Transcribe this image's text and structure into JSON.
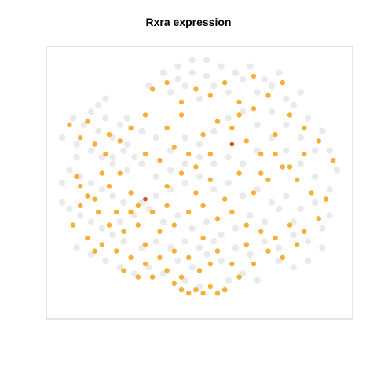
{
  "chart_data": {
    "type": "scatter",
    "title": "Rxra expression",
    "xlabel": "",
    "ylabel": "",
    "axes_visible": false,
    "xlim": [
      -40,
      40
    ],
    "ylim": [
      -40,
      40
    ],
    "grid": false,
    "legend": "none",
    "colors": {
      "background_cells": "#d9d9d9",
      "expressing_cells": "#f5a623",
      "high_expression": "#d2521a",
      "plot_border": "#cccccc"
    },
    "series": [
      {
        "role": "non-expressing",
        "points": [
          [
            -35,
            20
          ],
          [
            -32,
            18
          ],
          [
            -30,
            22
          ],
          [
            -28,
            16
          ],
          [
            -26,
            20
          ],
          [
            -24,
            14
          ],
          [
            -22,
            18
          ],
          [
            -20,
            12
          ],
          [
            -34,
            12
          ],
          [
            -30,
            10
          ],
          [
            -27,
            8
          ],
          [
            -24,
            6
          ],
          [
            -21,
            10
          ],
          [
            -18,
            8
          ],
          [
            -36,
            4
          ],
          [
            -33,
            2
          ],
          [
            -30,
            0
          ],
          [
            -27,
            -2
          ],
          [
            -24,
            -4
          ],
          [
            -21,
            -6
          ],
          [
            -36,
            -8
          ],
          [
            -33,
            -10
          ],
          [
            -30,
            -12
          ],
          [
            -27,
            -14
          ],
          [
            -24,
            -16
          ],
          [
            -21,
            -18
          ],
          [
            -34,
            -20
          ],
          [
            -30,
            -22
          ],
          [
            -26,
            -24
          ],
          [
            -22,
            -26
          ],
          [
            -18,
            -28
          ],
          [
            -14,
            -26
          ],
          [
            -10,
            -28
          ],
          [
            -6,
            -24
          ],
          [
            -2,
            -26
          ],
          [
            2,
            -22
          ],
          [
            6,
            -24
          ],
          [
            10,
            -20
          ],
          [
            14,
            -22
          ],
          [
            18,
            -18
          ],
          [
            22,
            -20
          ],
          [
            26,
            -16
          ],
          [
            30,
            -18
          ],
          [
            34,
            -14
          ],
          [
            36,
            -10
          ],
          [
            32,
            -6
          ],
          [
            28,
            -8
          ],
          [
            24,
            -4
          ],
          [
            20,
            -6
          ],
          [
            16,
            -2
          ],
          [
            12,
            -4
          ],
          [
            8,
            0
          ],
          [
            4,
            -2
          ],
          [
            0,
            2
          ],
          [
            -4,
            0
          ],
          [
            -8,
            4
          ],
          [
            -12,
            2
          ],
          [
            -16,
            6
          ],
          [
            -20,
            4
          ],
          [
            -24,
            8
          ],
          [
            -8,
            28
          ],
          [
            -4,
            30
          ],
          [
            0,
            26
          ],
          [
            4,
            30
          ],
          [
            8,
            28
          ],
          [
            12,
            32
          ],
          [
            16,
            28
          ],
          [
            20,
            30
          ],
          [
            24,
            26
          ],
          [
            28,
            28
          ],
          [
            -14,
            30
          ],
          [
            -10,
            34
          ],
          [
            -6,
            32
          ],
          [
            -2,
            34
          ],
          [
            2,
            33
          ],
          [
            6,
            36
          ],
          [
            10,
            34
          ],
          [
            14,
            36
          ],
          [
            18,
            32
          ],
          [
            22,
            34
          ],
          [
            26,
            24
          ],
          [
            30,
            20
          ],
          [
            34,
            16
          ],
          [
            36,
            10
          ],
          [
            38,
            4
          ],
          [
            36,
            -2
          ],
          [
            32,
            2
          ],
          [
            28,
            6
          ],
          [
            24,
            10
          ],
          [
            20,
            14
          ],
          [
            16,
            18
          ],
          [
            12,
            22
          ],
          [
            8,
            20
          ],
          [
            4,
            16
          ],
          [
            0,
            12
          ],
          [
            -4,
            14
          ],
          [
            -8,
            10
          ],
          [
            -12,
            14
          ],
          [
            -16,
            16
          ],
          [
            -20,
            20
          ],
          [
            -6,
            36
          ],
          [
            -2,
            38
          ],
          [
            2,
            38
          ],
          [
            -10,
            -12
          ],
          [
            -6,
            -10
          ],
          [
            -2,
            -14
          ],
          [
            2,
            -12
          ],
          [
            6,
            -16
          ],
          [
            10,
            -14
          ],
          [
            14,
            -10
          ],
          [
            18,
            -12
          ],
          [
            22,
            -8
          ],
          [
            26,
            -12
          ],
          [
            -14,
            -8
          ],
          [
            -18,
            -10
          ],
          [
            -22,
            -12
          ],
          [
            -16,
            -20
          ],
          [
            -12,
            -18
          ],
          [
            -8,
            -20
          ],
          [
            -4,
            -18
          ],
          [
            0,
            -20
          ],
          [
            4,
            -18
          ],
          [
            8,
            -30
          ],
          [
            12,
            -28
          ],
          [
            16,
            -30
          ],
          [
            0,
            -32
          ],
          [
            -4,
            -30
          ],
          [
            20,
            22
          ],
          [
            24,
            18
          ],
          [
            28,
            14
          ],
          [
            32,
            10
          ],
          [
            16,
            10
          ],
          [
            12,
            6
          ],
          [
            8,
            8
          ],
          [
            4,
            6
          ],
          [
            0,
            8
          ],
          [
            -4,
            6
          ],
          [
            -8,
            -2
          ],
          [
            -12,
            -4
          ],
          [
            -16,
            -6
          ],
          [
            -28,
            24
          ],
          [
            -26,
            26
          ],
          [
            -34,
            8
          ],
          [
            -38,
            14
          ],
          [
            -38,
            0
          ],
          [
            -38,
            -6
          ],
          [
            34,
            -20
          ],
          [
            30,
            -24
          ],
          [
            26,
            -26
          ],
          [
            22,
            -24
          ]
        ]
      },
      {
        "role": "expressing",
        "points": [
          [
            -36,
            18
          ],
          [
            -33,
            14
          ],
          [
            -29,
            12
          ],
          [
            -26,
            9
          ],
          [
            -22,
            13
          ],
          [
            -34,
            2
          ],
          [
            -31,
            -4
          ],
          [
            -28,
            -9
          ],
          [
            -25,
            -1
          ],
          [
            -22,
            3
          ],
          [
            -19,
            -3
          ],
          [
            -35,
            -13
          ],
          [
            -31,
            -17
          ],
          [
            -27,
            -19
          ],
          [
            -23,
            -21
          ],
          [
            -19,
            -23
          ],
          [
            -15,
            -25
          ],
          [
            -11,
            -23
          ],
          [
            -7,
            -21
          ],
          [
            -3,
            -23
          ],
          [
            1,
            -17
          ],
          [
            5,
            -21
          ],
          [
            9,
            -25
          ],
          [
            13,
            -19
          ],
          [
            17,
            -15
          ],
          [
            21,
            -17
          ],
          [
            25,
            -13
          ],
          [
            29,
            -15
          ],
          [
            33,
            -11
          ],
          [
            31,
            -3
          ],
          [
            27,
            1
          ],
          [
            23,
            5
          ],
          [
            19,
            1
          ],
          [
            15,
            -3
          ],
          [
            11,
            3
          ],
          [
            7,
            -5
          ],
          [
            3,
            1
          ],
          [
            -1,
            -3
          ],
          [
            -5,
            3
          ],
          [
            -9,
            -1
          ],
          [
            -13,
            -9
          ],
          [
            -17,
            -13
          ],
          [
            -21,
            -15
          ],
          [
            -11,
            -15
          ],
          [
            -7,
            -13
          ],
          [
            -3,
            -9
          ],
          [
            1,
            -7
          ],
          [
            5,
            -11
          ],
          [
            9,
            -9
          ],
          [
            13,
            -13
          ],
          [
            -13,
            29
          ],
          [
            -9,
            31
          ],
          [
            -5,
            25
          ],
          [
            -1,
            29
          ],
          [
            3,
            27
          ],
          [
            7,
            31
          ],
          [
            11,
            25
          ],
          [
            15,
            33
          ],
          [
            19,
            27
          ],
          [
            23,
            31
          ],
          [
            -15,
            9
          ],
          [
            -11,
            7
          ],
          [
            -7,
            11
          ],
          [
            -3,
            9
          ],
          [
            1,
            15
          ],
          [
            5,
            19
          ],
          [
            9,
            17
          ],
          [
            13,
            13
          ],
          [
            17,
            9
          ],
          [
            21,
            15
          ],
          [
            25,
            21
          ],
          [
            29,
            17
          ],
          [
            33,
            13
          ],
          [
            37,
            7
          ],
          [
            35,
            -5
          ],
          [
            -1,
            -33
          ],
          [
            1,
            -34
          ],
          [
            3,
            -32
          ],
          [
            5,
            -34
          ],
          [
            -3,
            -34
          ],
          [
            7,
            -33
          ],
          [
            -5,
            -33
          ],
          [
            -17,
            -7
          ],
          [
            -23,
            -9
          ],
          [
            -29,
            -5
          ],
          [
            -33,
            -1
          ],
          [
            -25,
            15
          ],
          [
            -31,
            19
          ],
          [
            -21,
            -27
          ],
          [
            -17,
            -29
          ],
          [
            -13,
            -29
          ],
          [
            -9,
            -27
          ],
          [
            -5,
            -29
          ],
          [
            3,
            -25
          ],
          [
            11,
            -29
          ],
          [
            15,
            -25
          ],
          [
            19,
            -21
          ],
          [
            23,
            -23
          ],
          [
            27,
            -19
          ],
          [
            -27,
            3
          ],
          [
            -15,
            21
          ],
          [
            -9,
            17
          ],
          [
            -5,
            21
          ],
          [
            -19,
            17
          ],
          [
            11,
            21
          ],
          [
            15,
            23
          ],
          [
            17,
            3
          ],
          [
            21,
            9
          ],
          [
            25,
            5
          ],
          [
            29,
            9
          ],
          [
            -1,
            5
          ],
          [
            3,
            9
          ],
          [
            -9,
            -7
          ],
          [
            -15,
            -19
          ],
          [
            -19,
            -9
          ],
          [
            -25,
            -13
          ],
          [
            -29,
            -21
          ],
          [
            -33,
            -7
          ],
          [
            0,
            -27
          ],
          [
            -7,
            -31
          ]
        ]
      },
      {
        "role": "high-expression",
        "points": [
          [
            9,
            12
          ],
          [
            -15,
            -5
          ]
        ]
      }
    ]
  }
}
